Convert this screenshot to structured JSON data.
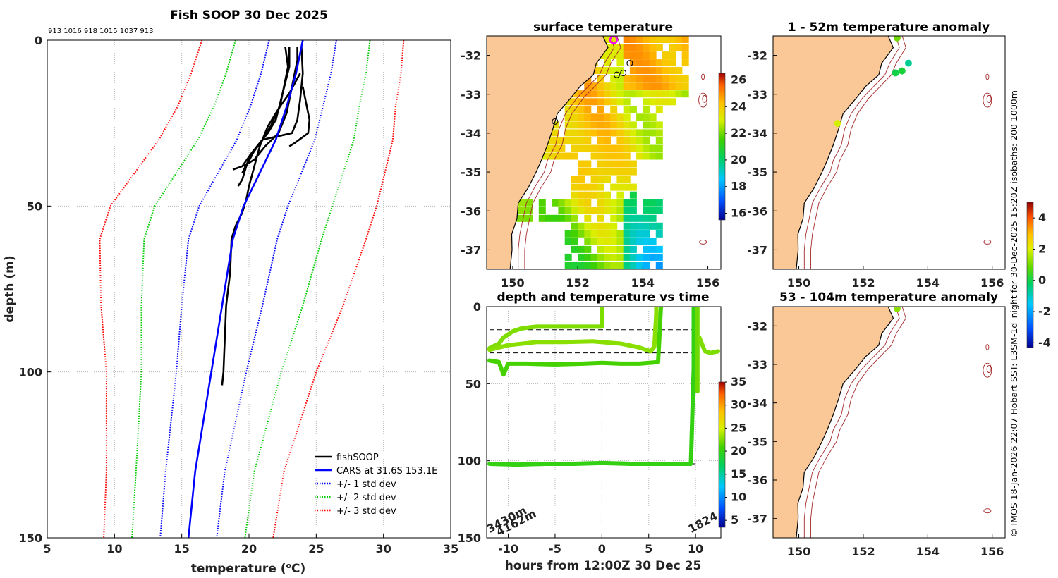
{
  "chart_data": [
    {
      "id": "profile",
      "type": "line",
      "title": "Fish SOOP 30 Dec 2025",
      "subtitle": "913 1016 918 1015 1037 913",
      "xlabel": "temperature (oC)",
      "xlabel_main": "temperature (",
      "xlabel_sup": "o",
      "xlabel_unit": "C)",
      "ylabel": "depth (m)",
      "xlim": [
        5,
        35
      ],
      "ylim": [
        0,
        150
      ],
      "xticks": [
        5,
        10,
        15,
        20,
        25,
        30,
        35
      ],
      "yticks": [
        0,
        50,
        100,
        150
      ],
      "legend": {
        "position": "bottom-right",
        "entries": [
          {
            "label": "fishSOOP",
            "color": "#000000",
            "style": "solid"
          },
          {
            "label": "CARS at 31.6S 153.1E",
            "color": "#0000ff",
            "style": "solid"
          },
          {
            "label": "+/- 1 std dev",
            "color": "#0000ff",
            "style": "dotted"
          },
          {
            "label": "+/- 2 std dev",
            "color": "#00cc00",
            "style": "dotted"
          },
          {
            "label": "+/- 3 std dev",
            "color": "#ff0000",
            "style": "dotted"
          }
        ]
      },
      "cars": {
        "depth": [
          0,
          10,
          20,
          30,
          40,
          50,
          60,
          80,
          100,
          130,
          150
        ],
        "temp": [
          24.0,
          23.5,
          22.8,
          22.0,
          20.8,
          19.6,
          18.8,
          18.0,
          17.2,
          16.0,
          15.5
        ],
        "std": [
          2.5,
          2.6,
          2.7,
          2.9,
          3.1,
          3.3,
          3.3,
          3.0,
          2.6,
          2.2,
          2.1
        ]
      },
      "series": [
        {
          "name": "fishSOOP-1",
          "depth": [
            2,
            8,
            14,
            20,
            26,
            30,
            34,
            38,
            42,
            44
          ],
          "temp": [
            22.7,
            22.9,
            22.6,
            22.3,
            21.6,
            21.0,
            20.3,
            19.8,
            19.5,
            19.2
          ]
        },
        {
          "name": "fishSOOP-2",
          "depth": [
            2,
            8,
            16,
            24,
            28,
            32,
            36,
            40
          ],
          "temp": [
            23.0,
            23.0,
            22.5,
            22.0,
            21.4,
            20.6,
            20.0,
            19.5
          ]
        },
        {
          "name": "fishSOOP-3",
          "depth": [
            2,
            6,
            14,
            22,
            28,
            32,
            36,
            38
          ],
          "temp": [
            23.6,
            23.6,
            23.2,
            22.8,
            22.2,
            21.2,
            20.4,
            19.6
          ]
        },
        {
          "name": "fishSOOP-4",
          "depth": [
            2,
            10,
            18,
            24,
            28,
            30,
            34,
            38,
            39
          ],
          "temp": [
            23.9,
            24.0,
            23.8,
            23.6,
            23.2,
            21.0,
            20.2,
            19.5,
            18.8
          ]
        },
        {
          "name": "fishSOOP-5",
          "depth": [
            14,
            16,
            20,
            24,
            28,
            31,
            32
          ],
          "temp": [
            24.0,
            24.1,
            24.3,
            24.5,
            24.4,
            23.4,
            23.0
          ]
        },
        {
          "name": "fishSOOP-6",
          "depth": [
            10,
            16,
            20,
            26,
            32,
            38,
            44,
            48,
            52,
            56,
            60,
            70,
            80,
            90,
            100,
            104
          ],
          "temp": [
            23.8,
            23.0,
            22.3,
            21.4,
            20.8,
            20.4,
            20.0,
            19.8,
            19.5,
            19.0,
            18.7,
            18.6,
            18.3,
            18.2,
            18.1,
            18.0
          ]
        }
      ]
    },
    {
      "id": "sst-map",
      "type": "heatmap",
      "title": "surface temperature",
      "xticks": [
        150,
        152,
        154,
        156
      ],
      "yticks": [
        -32,
        -33,
        -34,
        -35,
        -36,
        -37
      ],
      "xlim": [
        149.2,
        156.4
      ],
      "ylim": [
        -37.5,
        -31.5
      ],
      "colorbar": {
        "ticks": [
          16,
          18,
          20,
          22,
          24,
          26
        ],
        "range": [
          15.5,
          26.5
        ]
      },
      "stations": [
        {
          "lon": 153.1,
          "lat": -31.6,
          "highlight": true
        },
        {
          "lon": 153.6,
          "lat": -32.2,
          "highlight": false
        },
        {
          "lon": 153.4,
          "lat": -32.45,
          "highlight": false
        },
        {
          "lon": 153.2,
          "lat": -32.5,
          "highlight": false
        },
        {
          "lon": 151.3,
          "lat": -33.7,
          "highlight": false
        }
      ]
    },
    {
      "id": "anomaly-shallow",
      "type": "scatter",
      "title": "1 - 52m temperature anomaly",
      "xticks": [
        150,
        152,
        154,
        156
      ],
      "yticks": [
        -32,
        -33,
        -34,
        -35,
        -36,
        -37
      ],
      "xlim": [
        149.2,
        156.4
      ],
      "ylim": [
        -37.5,
        -31.5
      ],
      "colorbar": {
        "ticks": [
          -4,
          -2,
          0,
          2,
          4
        ],
        "range": [
          -4.3,
          5.0
        ]
      },
      "points": [
        {
          "lon": 153.05,
          "lat": -31.55,
          "anomaly": 1.2
        },
        {
          "lon": 153.4,
          "lat": -32.2,
          "anomaly": -0.8
        },
        {
          "lon": 153.2,
          "lat": -32.4,
          "anomaly": 0.1
        },
        {
          "lon": 153.0,
          "lat": -32.45,
          "anomaly": -0.1
        },
        {
          "lon": 151.2,
          "lat": -33.75,
          "anomaly": 2.0
        }
      ]
    },
    {
      "id": "depth-time",
      "type": "scatter",
      "title": "depth and temperature vs time",
      "xlabel": "hours from 12:00Z 30 Dec 25",
      "xticks": [
        -10,
        -5,
        0,
        5,
        10
      ],
      "yticks": [
        0,
        50,
        100,
        150
      ],
      "xlim": [
        -12.3,
        12.7
      ],
      "ylim": [
        0,
        150
      ],
      "colorbar": {
        "ticks": [
          5,
          10,
          15,
          20,
          25,
          30,
          35
        ],
        "range": [
          3.5,
          35
        ]
      },
      "reference_depths": [
        15,
        30,
        102
      ],
      "annotations": [
        {
          "text": "3430m",
          "x": -12.0,
          "y": 147
        },
        {
          "text": "4162m",
          "x": -11.0,
          "y": 149
        },
        {
          "text": "1824",
          "x": 9.5,
          "y": 147
        }
      ],
      "traces": [
        {
          "name": "shallow-1",
          "temp": 22.5,
          "points": [
            [
              -12,
              27
            ],
            [
              -11,
              24
            ],
            [
              -10.5,
              20
            ],
            [
              -9.5,
              16
            ],
            [
              -8.5,
              14
            ],
            [
              -7,
              13
            ],
            [
              -4,
              13
            ],
            [
              -1,
              13
            ],
            [
              0,
              13
            ],
            [
              0,
              0
            ]
          ]
        },
        {
          "name": "shallow-2",
          "temp": 22.8,
          "points": [
            [
              -12,
              28
            ],
            [
              -10,
              25
            ],
            [
              -7,
              23
            ],
            [
              -4,
              23
            ],
            [
              -1,
              22.5
            ],
            [
              2,
              24
            ],
            [
              4,
              26.5
            ],
            [
              5.2,
              29
            ],
            [
              5.6,
              26
            ],
            [
              5.8,
              5
            ],
            [
              5.8,
              0
            ]
          ]
        },
        {
          "name": "mid",
          "temp": 21.0,
          "points": [
            [
              -12,
              35
            ],
            [
              -11,
              36
            ],
            [
              -10.5,
              44
            ],
            [
              -10,
              37
            ],
            [
              -8,
              37
            ],
            [
              -5,
              37.5
            ],
            [
              -2,
              37
            ],
            [
              0,
              36.5
            ],
            [
              2,
              37
            ],
            [
              4,
              37
            ],
            [
              6,
              36
            ],
            [
              6.3,
              0
            ]
          ]
        },
        {
          "name": "deep",
          "temp": 20.0,
          "points": [
            [
              -12,
              102
            ],
            [
              -9,
              102.5
            ],
            [
              -6,
              102
            ],
            [
              -3,
              102
            ],
            [
              0,
              101.5
            ],
            [
              3,
              102
            ],
            [
              6,
              102
            ],
            [
              9.5,
              102
            ],
            [
              9.8,
              40
            ],
            [
              9.8,
              0
            ]
          ]
        },
        {
          "name": "deep-mark",
          "temp": 22.0,
          "points": [
            [
              10.2,
              0
            ],
            [
              10.2,
              55
            ]
          ]
        },
        {
          "name": "recent",
          "temp": 22.5,
          "points": [
            [
              10.4,
              20
            ],
            [
              11.0,
              29
            ],
            [
              11.6,
              30
            ],
            [
              12.4,
              29
            ]
          ]
        }
      ]
    },
    {
      "id": "anomaly-deep",
      "type": "scatter",
      "title": "53 - 104m temperature anomaly",
      "xticks": [
        150,
        152,
        154,
        156
      ],
      "yticks": [
        -32,
        -33,
        -34,
        -35,
        -36,
        -37
      ],
      "xlim": [
        149.2,
        156.4
      ],
      "ylim": [
        -37.5,
        -31.5
      ],
      "points": [
        {
          "lon": 153.05,
          "lat": -31.55,
          "anomaly": 1.4
        }
      ]
    }
  ],
  "side_note": "© IMOS 18-Jan-2026 22:07 Hobart SST: L3SM-1d_night for 30-Dec-2025 15:20Z isobaths: 200  1000m",
  "colors": {
    "land": "#fac896",
    "isobath": "#a52a2a",
    "cars": "#0000ff",
    "soop": "#000000"
  }
}
